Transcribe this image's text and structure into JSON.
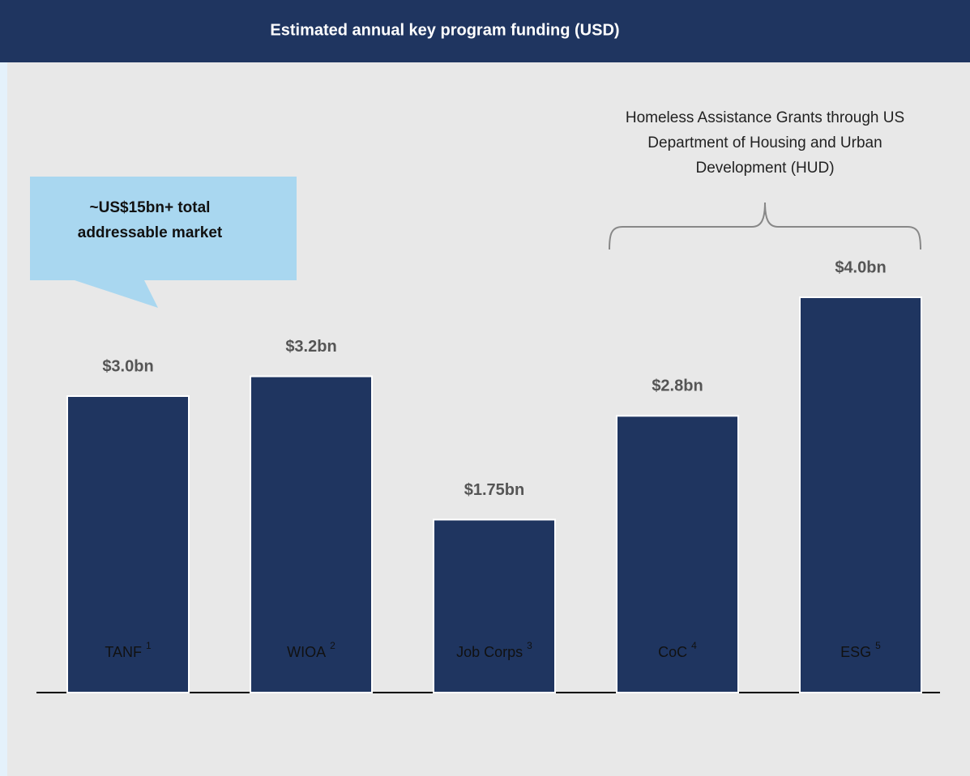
{
  "chart_data": {
    "type": "bar",
    "title": "Estimated annual key program funding (USD)",
    "categories": [
      "TANF",
      "WIOA",
      "Job Corps",
      "CoC",
      "ESG"
    ],
    "footnote_refs": [
      "1",
      "2",
      "3",
      "4",
      "5"
    ],
    "values": [
      3.0,
      3.2,
      1.75,
      2.8,
      4.0
    ],
    "value_labels": [
      "$3.0bn",
      "$3.2bn",
      "$1.75bn",
      "$2.8bn",
      "$4.0bn"
    ],
    "color": "#1f3560",
    "callout": [
      "~US$15bn+ total",
      "addressable market"
    ],
    "bracket_annotation": [
      "Homeless Assistance Grants through US",
      "Department of Housing and Urban",
      "Development (HUD)"
    ]
  }
}
